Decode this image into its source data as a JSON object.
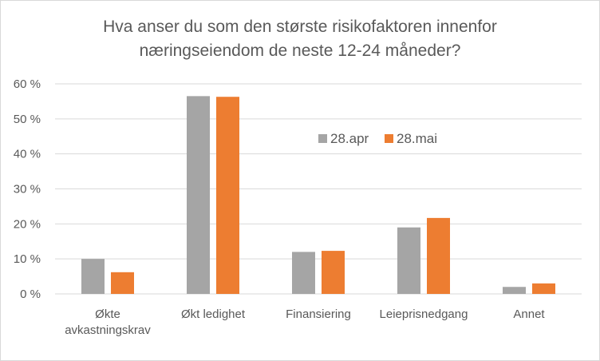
{
  "chart_data": {
    "type": "bar",
    "title_lines": [
      "Hva anser du som den største risikofaktoren innenfor",
      "næringseiendom de neste 12-24 måneder?"
    ],
    "categories": [
      [
        "Økte",
        "avkastningskrav"
      ],
      [
        "Økt ledighet"
      ],
      [
        "Finansiering"
      ],
      [
        "Leieprisnedgang"
      ],
      [
        "Annet"
      ]
    ],
    "series": [
      {
        "name": "28.apr",
        "color": "#a5a5a5",
        "values": [
          10,
          56.5,
          12,
          19,
          2
        ]
      },
      {
        "name": "28.mai",
        "color": "#ed7d31",
        "values": [
          6.2,
          56.3,
          12.3,
          21.7,
          3
        ]
      }
    ],
    "y_ticks": [
      0,
      10,
      20,
      30,
      40,
      50,
      60
    ],
    "y_tick_labels": [
      "0 %",
      "10 %",
      "20 %",
      "30 %",
      "40 %",
      "50 %",
      "60 %"
    ],
    "ylim": [
      0,
      60
    ],
    "grid": true,
    "legend_position": "inside-top-right"
  }
}
